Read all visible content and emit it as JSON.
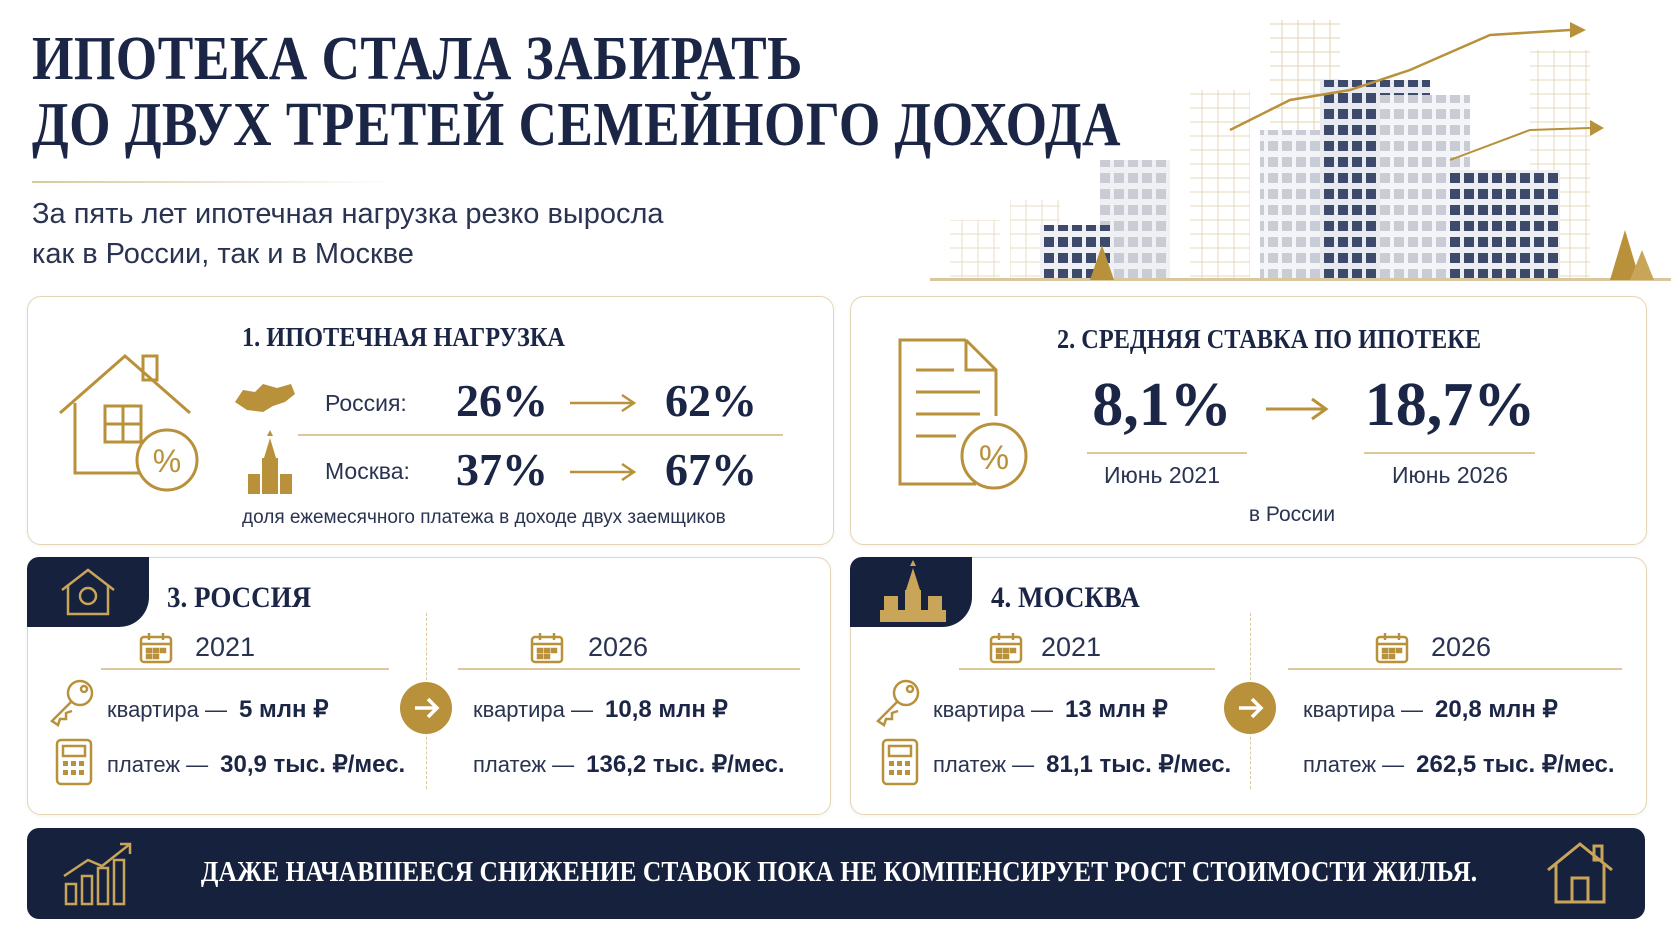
{
  "header": {
    "title": [
      "ИПОТЕКА СТАЛА ЗАБИРАТЬ",
      "ДО ДВУХ ТРЕТЕЙ СЕМЕЙНОГО ДОХОДА"
    ],
    "subtitle": [
      "За пять лет ипотечная нагрузка резко выросла",
      "как в России, так и в Москве"
    ]
  },
  "cards": [
    {
      "number": "1.",
      "title": "ИПОТЕЧНАЯ НАГРУЗКА",
      "rows": [
        {
          "label": "Россия:",
          "from": "26%",
          "to": "62%"
        },
        {
          "label": "Москва:",
          "from": "37%",
          "to": "67%"
        }
      ],
      "note": "доля ежемесячного платежа в доходе двух заемщиков"
    },
    {
      "number": "2.",
      "title": "СРЕДНЯЯ СТАВКА ПО ИПОТЕКЕ",
      "from": {
        "value": "8,1%",
        "date": "Июнь 2021"
      },
      "to": {
        "value": "18,7%",
        "date": "Июнь 2026"
      },
      "note": "в России"
    },
    {
      "title": "3. РОССИЯ",
      "columns": [
        {
          "year": "2021",
          "items": [
            {
              "label": "квартира —",
              "value": "5 млн ₽"
            },
            {
              "label": "платеж —",
              "value": "30,9 тыс. ₽/мес."
            }
          ]
        },
        {
          "year": "2026",
          "items": [
            {
              "label": "квартира —",
              "value": "10,8 млн ₽"
            },
            {
              "label": "платеж —",
              "value": "136,2 тыс. ₽/мес."
            }
          ]
        }
      ]
    },
    {
      "title": "4. МОСКВА",
      "columns": [
        {
          "year": "2021",
          "items": [
            {
              "label": "квартира —",
              "value": "13 млн ₽"
            },
            {
              "label": "платеж —",
              "value": "81,1 тыс. ₽/мес."
            }
          ]
        },
        {
          "year": "2026",
          "items": [
            {
              "label": "квартира —",
              "value": "20,8 млн ₽"
            },
            {
              "label": "платеж —",
              "value": "262,5 тыс. ₽/мес."
            }
          ]
        }
      ]
    }
  ],
  "footer": {
    "text": "ДАЖЕ НАЧАВШЕЕСЯ СНИЖЕНИЕ СТАВОК ПОКА НЕ КОМПЕНСИРУЕТ РОСТ СТОИМОСТИ ЖИЛЬЯ."
  }
}
